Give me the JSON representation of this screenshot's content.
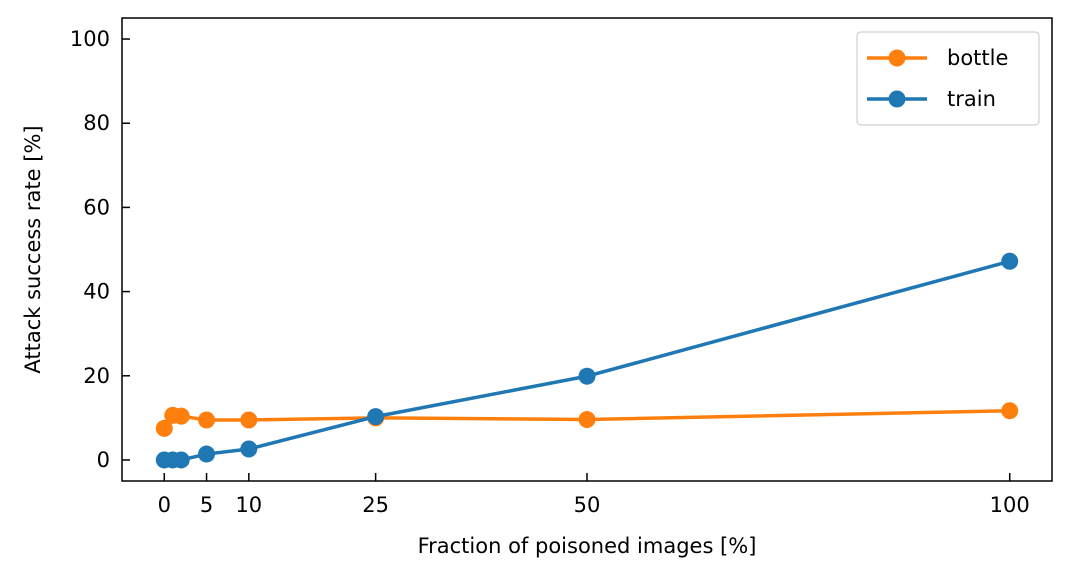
{
  "chart_data": {
    "type": "line",
    "xlabel": "Fraction of poisoned images [%]",
    "ylabel": "Attack success rate [%]",
    "xlim": [
      -5,
      105
    ],
    "ylim": [
      -5,
      105
    ],
    "xticks": [
      0,
      5,
      10,
      25,
      50,
      100
    ],
    "yticks": [
      0,
      20,
      40,
      60,
      80,
      100
    ],
    "grid": false,
    "legend_position": "top-right",
    "series": [
      {
        "name": "bottle",
        "color": "#ff7f0e",
        "x": [
          0,
          1,
          2,
          5,
          10,
          25,
          50,
          100
        ],
        "y": [
          7.5,
          10.6,
          10.4,
          9.5,
          9.5,
          10.0,
          9.6,
          11.7
        ]
      },
      {
        "name": "train",
        "color": "#1f77b4",
        "x": [
          0,
          1,
          2,
          5,
          10,
          25,
          50,
          100
        ],
        "y": [
          0.0,
          0.0,
          0.0,
          1.4,
          2.6,
          10.3,
          19.9,
          47.2
        ]
      }
    ]
  }
}
